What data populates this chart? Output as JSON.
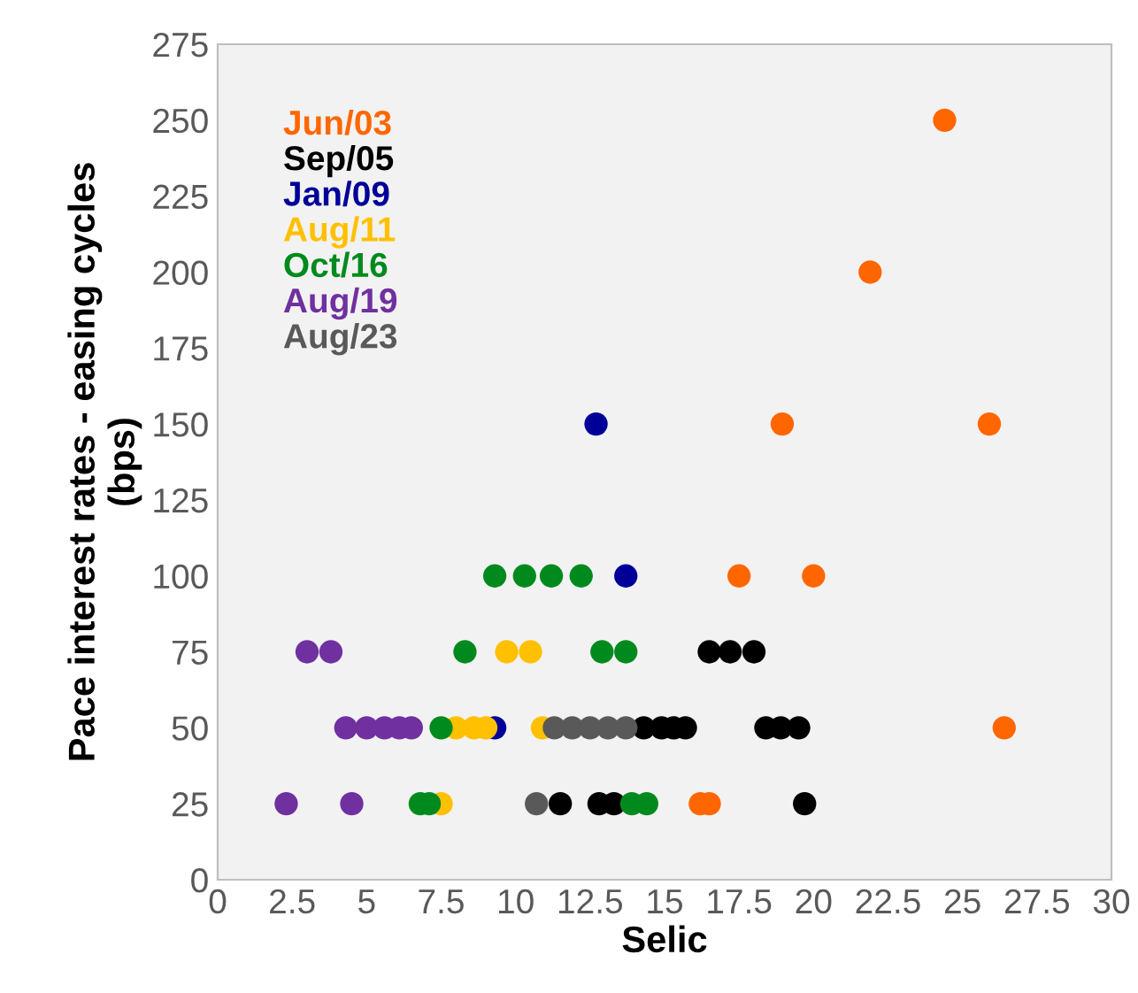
{
  "chart_data": {
    "type": "scatter",
    "xlabel": "Selic",
    "ylabel": "Pace interest rates - easing cycles\n(bps)",
    "xlim": [
      0,
      30
    ],
    "xticks": [
      0,
      2.5,
      5,
      7.5,
      10,
      12.5,
      15,
      17.5,
      20,
      22.5,
      25,
      27.5,
      30
    ],
    "ylim": [
      0,
      275
    ],
    "yticks": [
      0,
      25,
      50,
      75,
      100,
      125,
      150,
      175,
      200,
      225,
      250,
      275
    ],
    "grid": false,
    "legend": "top left",
    "marker": "circle",
    "series": [
      {
        "name": "Jun/03",
        "color": "#ff6600",
        "x": [
          24.4,
          21.9,
          18.95,
          25.9,
          17.5,
          20.0,
          26.4,
          16.2,
          16.5
        ],
        "values": [
          250,
          200,
          150,
          150,
          100,
          100,
          50,
          25,
          25
        ]
      },
      {
        "name": "Sep/05",
        "color": "#000000",
        "x": [
          16.5,
          17.2,
          18.0,
          14.3,
          14.9,
          15.3,
          15.7,
          18.4,
          18.9,
          19.5,
          11.5,
          12.8,
          13.3,
          19.7
        ],
        "values": [
          75,
          75,
          75,
          50,
          50,
          50,
          50,
          50,
          50,
          50,
          25,
          25,
          25,
          25
        ]
      },
      {
        "name": "Jan/09",
        "color": "#000099",
        "x": [
          12.7,
          13.7,
          9.3
        ],
        "values": [
          150,
          100,
          50
        ]
      },
      {
        "name": "Aug/11",
        "color": "#ffc000",
        "x": [
          9.7,
          10.5,
          8.0,
          8.6,
          9.0,
          10.9,
          7.5
        ],
        "values": [
          75,
          75,
          50,
          50,
          50,
          50,
          25
        ]
      },
      {
        "name": "Oct/16",
        "color": "#008a1e",
        "x": [
          9.3,
          10.3,
          11.2,
          12.2,
          8.3,
          12.9,
          13.7,
          7.5,
          6.8,
          7.1,
          13.9,
          14.4
        ],
        "values": [
          100,
          100,
          100,
          100,
          75,
          75,
          75,
          50,
          25,
          25,
          25,
          25
        ]
      },
      {
        "name": "Aug/19",
        "color": "#7030a0",
        "x": [
          3.0,
          3.8,
          4.3,
          5.0,
          5.6,
          6.1,
          6.5,
          2.3,
          4.5
        ],
        "values": [
          75,
          75,
          50,
          50,
          50,
          50,
          50,
          25,
          25
        ]
      },
      {
        "name": "Aug/23",
        "color": "#595959",
        "x": [
          11.3,
          11.9,
          12.5,
          13.1,
          13.7,
          10.7
        ],
        "values": [
          50,
          50,
          50,
          50,
          50,
          25
        ]
      }
    ]
  }
}
